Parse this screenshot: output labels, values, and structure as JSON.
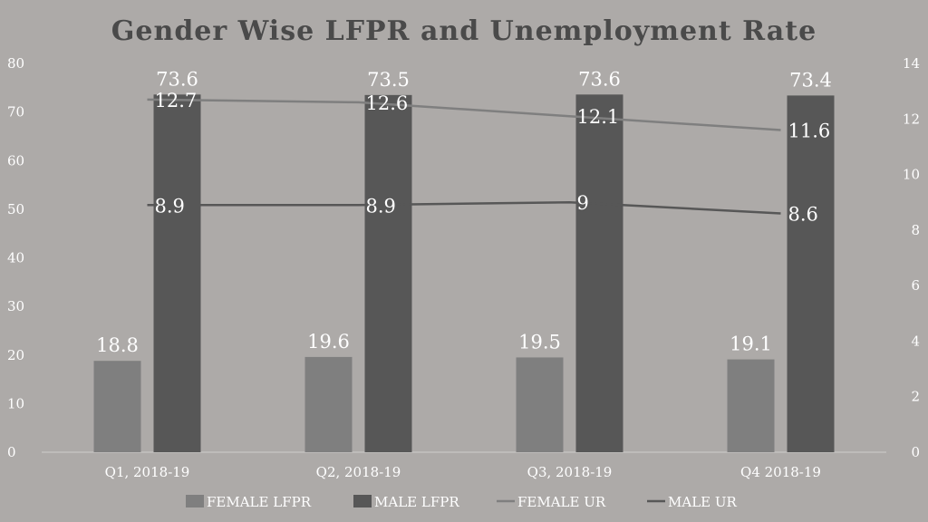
{
  "chart_data": {
    "type": "bar",
    "title": "Gender Wise LFPR and Unemployment Rate",
    "categories": [
      "Q1, 2018-19",
      "Q2, 2018-19",
      "Q3, 2018-19",
      "Q4 2018-19"
    ],
    "series": [
      {
        "name": "Female LFPR",
        "kind": "bar",
        "axis": "left",
        "color": "#7f7f7f",
        "values": [
          18.8,
          19.6,
          19.5,
          19.1
        ]
      },
      {
        "name": "Male LFPR",
        "kind": "bar",
        "axis": "left",
        "color": "#575757",
        "values": [
          73.6,
          73.5,
          73.6,
          73.4
        ]
      },
      {
        "name": "Female UR",
        "kind": "line",
        "axis": "right",
        "color": "#7f7f7f",
        "values": [
          12.7,
          12.6,
          12.1,
          11.6
        ]
      },
      {
        "name": "Male UR",
        "kind": "line",
        "axis": "right",
        "color": "#575757",
        "values": [
          8.9,
          8.9,
          9,
          8.6
        ]
      }
    ],
    "y_left": {
      "min": 0,
      "max": 80,
      "ticks": [
        0,
        10,
        20,
        30,
        40,
        50,
        60,
        70,
        80
      ]
    },
    "y_right": {
      "min": 0,
      "max": 14,
      "ticks": [
        0,
        2,
        4,
        6,
        8,
        10,
        12,
        14
      ]
    },
    "grid": false,
    "legend_position": "bottom"
  }
}
